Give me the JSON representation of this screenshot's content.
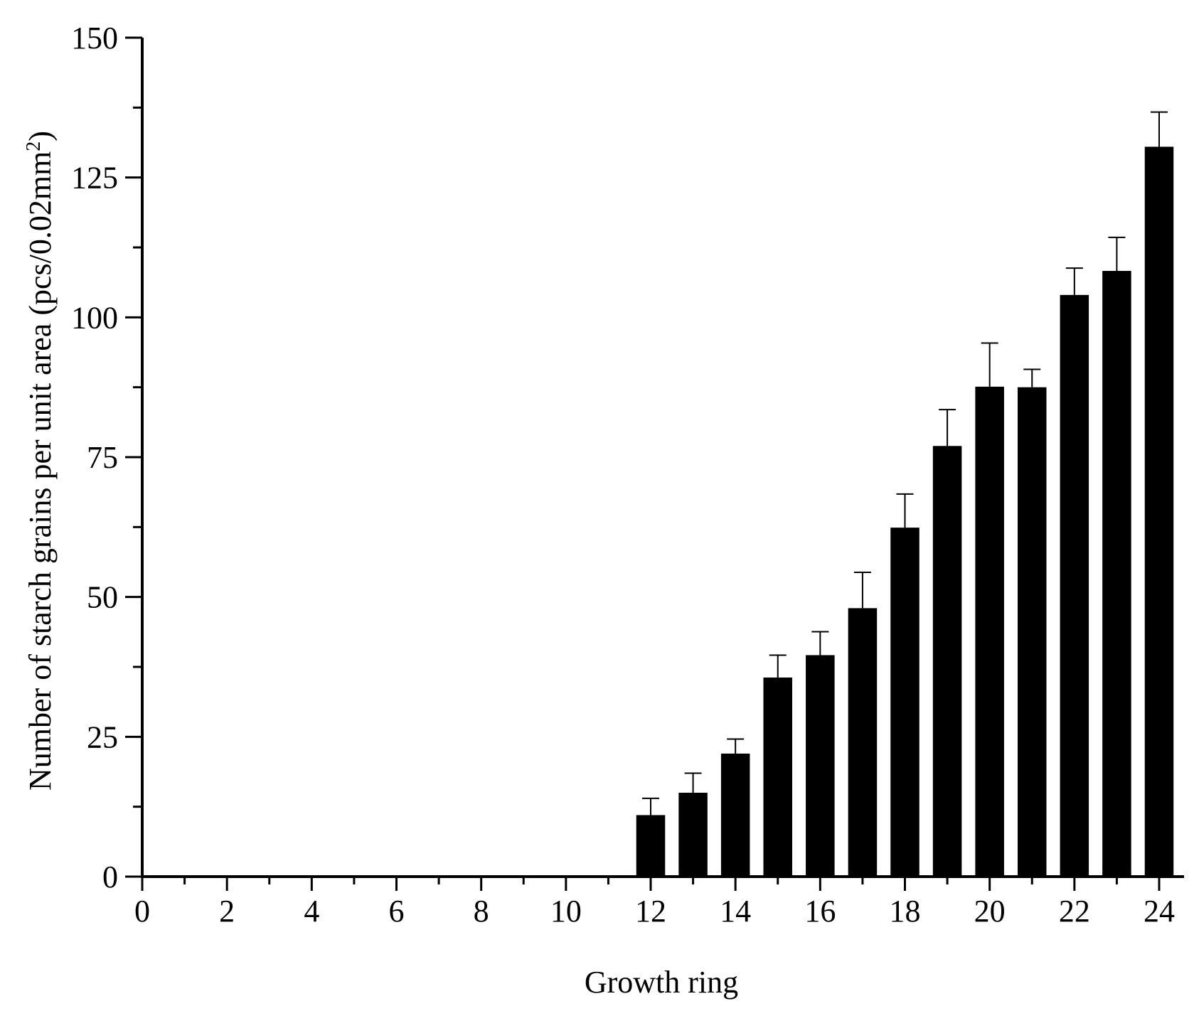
{
  "chart_data": {
    "type": "bar",
    "xlabel": "Growth ring",
    "ylabel": {
      "text": "Number of starch grains per unit area (pcs/0.02mm",
      "superscript": "2",
      "suffix": ")"
    },
    "xlim": [
      0,
      24
    ],
    "ylim": [
      0,
      150
    ],
    "x_ticks": [
      0,
      2,
      4,
      6,
      8,
      10,
      12,
      14,
      16,
      18,
      20,
      22,
      24
    ],
    "y_ticks": [
      0,
      25,
      50,
      75,
      100,
      125,
      150
    ],
    "bar_color": "#000000",
    "grid": false,
    "legend": "none",
    "bars": [
      {
        "x": 12,
        "value": 11,
        "error": 3
      },
      {
        "x": 13,
        "value": 15,
        "error": 3.5
      },
      {
        "x": 14,
        "value": 22,
        "error": 2.6
      },
      {
        "x": 15,
        "value": 35.6,
        "error": 4
      },
      {
        "x": 16,
        "value": 39.6,
        "error": 4.2
      },
      {
        "x": 17,
        "value": 48,
        "error": 6.4
      },
      {
        "x": 18,
        "value": 62.4,
        "error": 6
      },
      {
        "x": 19,
        "value": 77,
        "error": 6.5
      },
      {
        "x": 20,
        "value": 87.6,
        "error": 7.8
      },
      {
        "x": 21,
        "value": 87.5,
        "error": 3.2
      },
      {
        "x": 22,
        "value": 104,
        "error": 4.8
      },
      {
        "x": 23,
        "value": 108.3,
        "error": 6
      },
      {
        "x": 24,
        "value": 130.5,
        "error": 6.2
      }
    ]
  }
}
